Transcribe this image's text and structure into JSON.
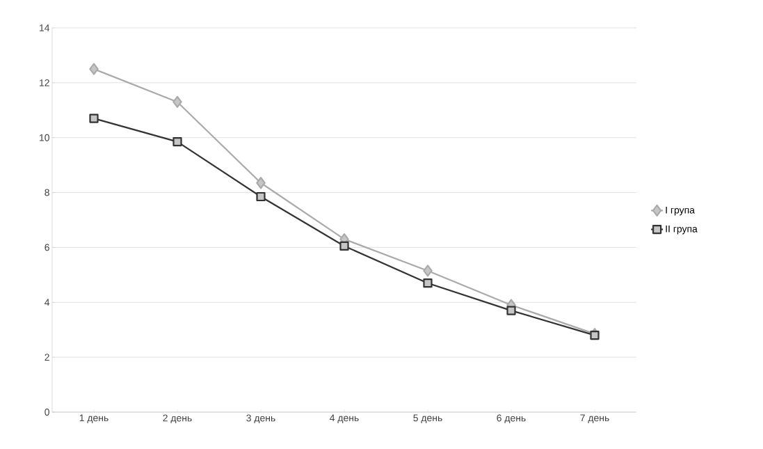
{
  "chart_data": {
    "type": "line",
    "categories": [
      "1 день",
      "2 день",
      "3 день",
      "4 день",
      "5 день",
      "6 день",
      "7 день"
    ],
    "series": [
      {
        "name": "I група",
        "color": "#aaaaaa",
        "marker": "diamond",
        "values": [
          12.5,
          11.3,
          8.35,
          6.3,
          5.15,
          3.9,
          2.85
        ]
      },
      {
        "name": "II група",
        "color": "#333333",
        "marker": "square",
        "values": [
          10.7,
          9.85,
          7.85,
          6.05,
          4.7,
          3.7,
          2.8
        ]
      }
    ],
    "ylim": [
      0,
      14
    ],
    "yticks": [
      0,
      2,
      4,
      6,
      8,
      10,
      12,
      14
    ],
    "grid": "y",
    "legend": "right",
    "line_style": "solid"
  }
}
